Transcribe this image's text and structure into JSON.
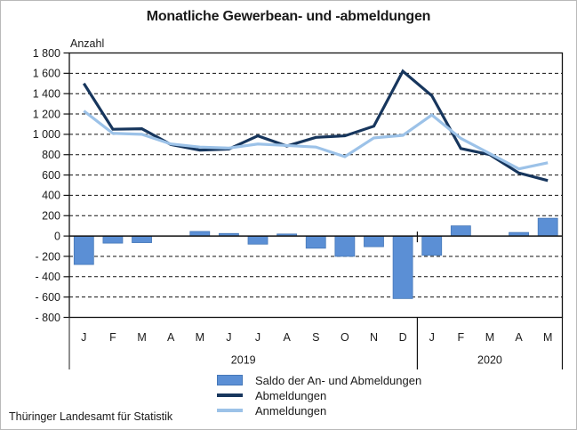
{
  "title": "Monatliche Gewerbean- und -abmeldungen",
  "footer": "Thüringer Landesamt für Statistik",
  "chart_data": {
    "type": "combo-bar-line",
    "title": "Monatliche Gewerbean- und -abmeldungen",
    "ylabel": "Anzahl",
    "xlabel": "",
    "ylim": [
      -800,
      1800
    ],
    "grid": "horizontal-dashed",
    "legend_position": "bottom-center",
    "yticks": [
      1800,
      1600,
      1400,
      1200,
      1000,
      800,
      600,
      400,
      200,
      0,
      -200,
      -400,
      -600,
      -800
    ],
    "ytick_labels": [
      "1 800",
      "1 600",
      "1 400",
      "1 200",
      "1 000",
      "800",
      "600",
      "400",
      "200",
      "0",
      "- 200",
      "- 400",
      "- 600",
      "- 800"
    ],
    "categories": [
      "J",
      "F",
      "M",
      "A",
      "M",
      "J",
      "J",
      "A",
      "S",
      "O",
      "N",
      "D",
      "J",
      "F",
      "M",
      "A",
      "M"
    ],
    "year_groups": [
      {
        "label": "2019",
        "months": 12
      },
      {
        "label": "2020",
        "months": 5
      }
    ],
    "series": [
      {
        "name": "Saldo der An- und Abmeldungen",
        "type": "bar",
        "color": "#5B8FD5",
        "border_color": "#4678B8",
        "values": [
          -280,
          -70,
          -65,
          0,
          45,
          25,
          -80,
          20,
          -120,
          -200,
          -105,
          -615,
          -190,
          100,
          0,
          35,
          175
        ]
      },
      {
        "name": "Abmeldungen",
        "type": "line",
        "color": "#17365D",
        "values": [
          1500,
          1050,
          1055,
          900,
          845,
          855,
          985,
          885,
          970,
          985,
          1080,
          1620,
          1380,
          860,
          800,
          620,
          545
        ]
      },
      {
        "name": "Anmeldungen",
        "type": "line",
        "color": "#9CC2E8",
        "values": [
          1230,
          1010,
          1000,
          905,
          875,
          865,
          905,
          890,
          875,
          780,
          965,
          990,
          1190,
          960,
          810,
          660,
          720
        ]
      }
    ]
  }
}
